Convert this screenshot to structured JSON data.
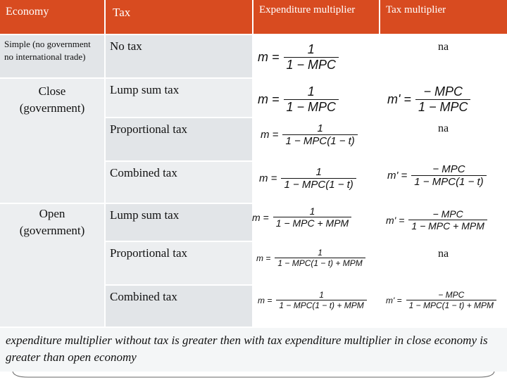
{
  "header": {
    "economy": "Economy",
    "tax": "Tax",
    "expenditure_multiplier": "Expenditure multiplier",
    "tax_multiplier": "Tax multiplier"
  },
  "rows": {
    "simple": {
      "economy": "Simple (no government no international trade)",
      "tax": "No tax",
      "exp_lhs": "m =",
      "exp_num": "1",
      "exp_den": "1 − MPC",
      "tax_mult": "na"
    },
    "close_label": "Close (government)",
    "close_lump": {
      "tax": "Lump sum tax",
      "exp_lhs": "m =",
      "exp_num": "1",
      "exp_den": "1 − MPC",
      "tm_lhs": "m' =",
      "tm_num": "− MPC",
      "tm_den": "1 − MPC"
    },
    "close_prop": {
      "tax": "Proportional tax",
      "exp_lhs": "m =",
      "exp_num": "1",
      "exp_den": "1 − MPC(1 − t)",
      "tax_mult": "na"
    },
    "close_comb": {
      "tax": "Combined tax",
      "exp_lhs": "m =",
      "exp_num": "1",
      "exp_den": "1 − MPC(1 − t)",
      "tm_lhs": "m' =",
      "tm_num": "− MPC",
      "tm_den": "1 − MPC(1 − t)"
    },
    "open_label": "Open (government)",
    "open_lump": {
      "tax": "Lump sum tax",
      "exp_lhs": "m =",
      "exp_num": "1",
      "exp_den": "1 − MPC + MPM",
      "tm_lhs": "m' =",
      "tm_num": "− MPC",
      "tm_den": "1 − MPC + MPM"
    },
    "open_prop": {
      "tax": "Proportional tax",
      "exp_lhs": "m =",
      "exp_num": "1",
      "exp_den": "1 − MPC(1 − t) + MPM",
      "tax_mult": "na"
    },
    "open_comb": {
      "tax": "Combined tax",
      "exp_lhs": "m =",
      "exp_num": "1",
      "exp_den": "1 − MPC(1 − t) + MPM",
      "tm_lhs": "m' =",
      "tm_num": "− MPC",
      "tm_den": "1 − MPC(1 − t) + MPM"
    }
  },
  "footnote": "expenditure multiplier without tax is greater then with tax expenditure multiplier in close economy is greater than open economy",
  "colors": {
    "header": "#d84b20",
    "row_light": "#eceef0",
    "row_dark": "#e2e5e8"
  }
}
